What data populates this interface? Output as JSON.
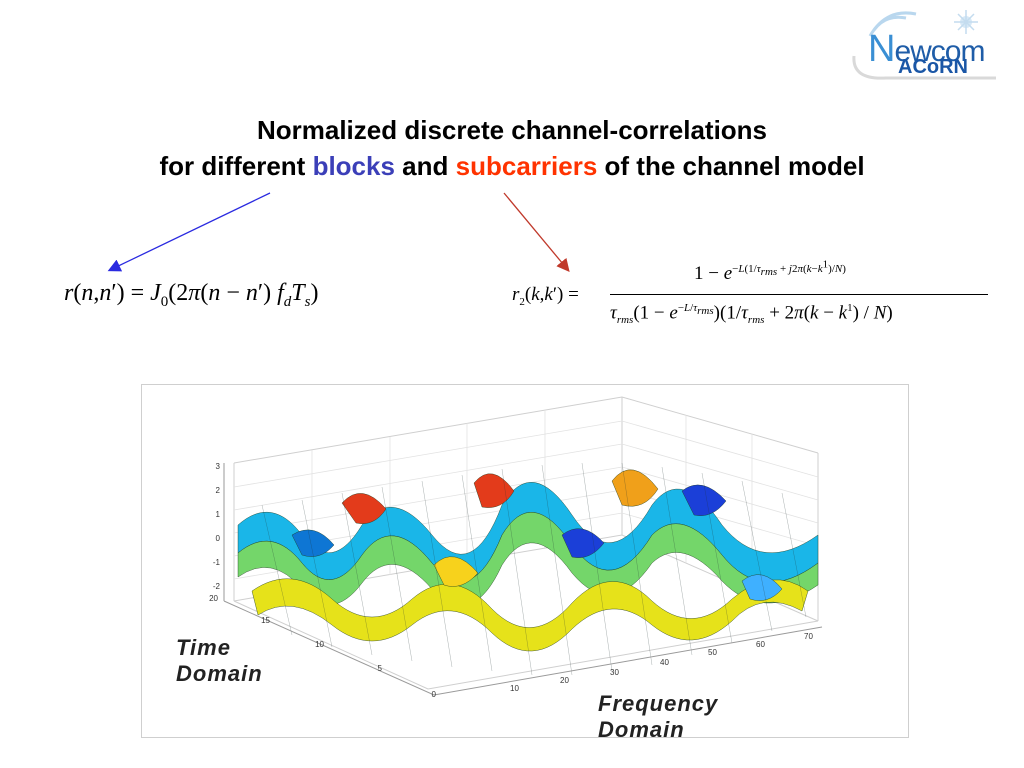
{
  "logo": {
    "newcom_n": "N",
    "newcom_rest": "ewcom",
    "acorn": "ACoRN"
  },
  "title": {
    "line1": "Normalized discrete channel-correlations",
    "line2_prefix": "for different",
    "word_blocks": "blocks",
    "word_and": "and",
    "word_subcarriers": "subcarriers",
    "line2_suffix": "of the channel model"
  },
  "formulas": {
    "time_correlation": "r(n,n′) = J₀(2π(n − n′) f_d T_s)",
    "frequency_correlation": "r₂(k,k′) = (1 − e^(−L(1/τrms + j2π(k−k¹)/N))) / (τrms (1 − e^(−L/τrms))(1/τrms + 2π(k − k¹)/N))"
  },
  "plot": {
    "z_ticks": [
      "3",
      "2",
      "1",
      "0",
      "-1",
      "-2"
    ],
    "time_ticks": [
      "20",
      "15",
      "10",
      "5",
      "0"
    ],
    "freq_ticks": [
      "10",
      "20",
      "30",
      "40",
      "50",
      "60",
      "70"
    ],
    "time_label_line1": "Time",
    "time_label_line2": "Domain",
    "freq_label_line1": "Frequency",
    "freq_label_line2": "Domain"
  },
  "colors": {
    "blocks": "#3b3fb8",
    "subcarriers": "#ff3300",
    "arrow_left": "#2a2ae0",
    "arrow_right": "#c0392b"
  }
}
